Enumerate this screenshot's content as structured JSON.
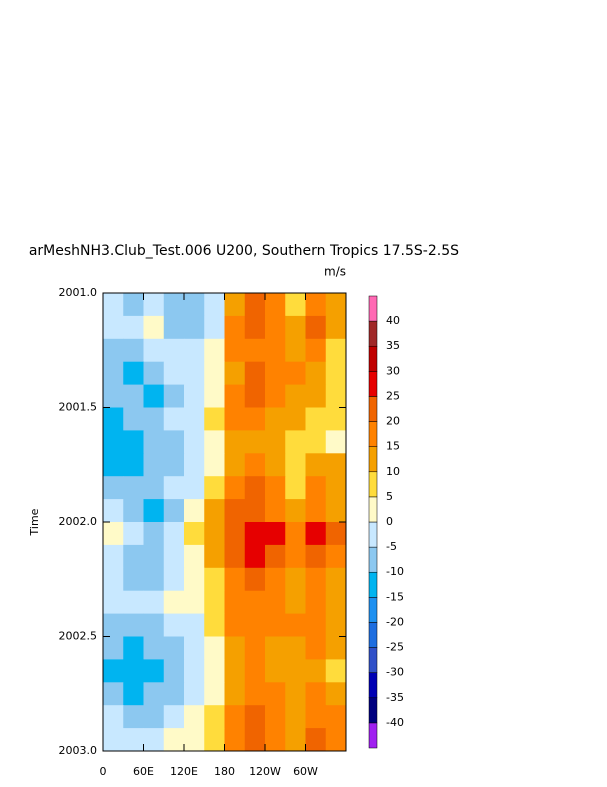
{
  "chart_data": {
    "type": "heatmap",
    "title": "arMeshNH3.Club_Test.006 U200, Southern Tropics 17.5S-2.5S",
    "units": "m/s",
    "ylabel": "Time",
    "xlim": [
      0,
      360
    ],
    "ylim": [
      2003.0,
      2001.0
    ],
    "xticks": [
      0,
      {
        "value": 60,
        "label": "60E"
      },
      {
        "value": 120,
        "label": "120E"
      },
      180,
      {
        "value": 240,
        "label": "120W"
      },
      {
        "value": 300,
        "label": "60W"
      }
    ],
    "yticks": [
      {
        "value": 2001.0,
        "label": "2001.0"
      },
      2001.5,
      {
        "value": 2002.0,
        "label": "2002.0"
      },
      2002.5,
      {
        "value": 2003.0,
        "label": "2003.0"
      }
    ],
    "x_edges": [
      0,
      30,
      60,
      90,
      120,
      150,
      180,
      210,
      240,
      270,
      300,
      330,
      360
    ],
    "y_edges": [
      2001.0,
      2001.1,
      2001.2,
      2001.3,
      2001.4,
      2001.5,
      2001.6,
      2001.7,
      2001.8,
      2001.9,
      2002.0,
      2002.1,
      2002.2,
      2002.3,
      2002.4,
      2002.5,
      2002.6,
      2002.7,
      2002.8,
      2002.9,
      2003.0
    ],
    "levels": [
      -40,
      -35,
      -30,
      -25,
      -20,
      -15,
      -10,
      -5,
      0,
      5,
      10,
      15,
      20,
      25,
      30,
      35,
      40
    ],
    "colors": [
      "#a020f0",
      "#00007f",
      "#0000b4",
      "#3050c8",
      "#1e6ee0",
      "#1e90f0",
      "#00b4f0",
      "#8cc8f0",
      "#c8e8ff",
      "#fffac8",
      "#ffdc3c",
      "#f5a000",
      "#ff8200",
      "#f06400",
      "#e60000",
      "#c00000",
      "#a02828",
      "#ff69b4"
    ],
    "z": [
      [
        -3,
        -8,
        -5,
        -8,
        -10,
        -2,
        12,
        22,
        15,
        8,
        18,
        10
      ],
      [
        -5,
        -3,
        2,
        -10,
        -8,
        -3,
        15,
        20,
        18,
        10,
        20,
        12
      ],
      [
        -8,
        -10,
        -5,
        -3,
        -5,
        0,
        15,
        18,
        15,
        12,
        15,
        8
      ],
      [
        -10,
        -12,
        -8,
        -5,
        -3,
        3,
        12,
        20,
        18,
        15,
        12,
        5
      ],
      [
        -8,
        -10,
        -12,
        -8,
        -5,
        2,
        15,
        20,
        15,
        12,
        10,
        8
      ],
      [
        -12,
        -10,
        -8,
        -5,
        -3,
        5,
        18,
        15,
        12,
        10,
        8,
        5
      ],
      [
        -15,
        -12,
        -10,
        -8,
        -5,
        0,
        10,
        12,
        10,
        5,
        8,
        3
      ],
      [
        -12,
        -15,
        -10,
        -8,
        -3,
        3,
        12,
        15,
        10,
        5,
        12,
        10
      ],
      [
        -8,
        -10,
        -8,
        -5,
        -3,
        8,
        18,
        22,
        15,
        8,
        15,
        10
      ],
      [
        -5,
        -8,
        -12,
        -8,
        0,
        10,
        20,
        22,
        18,
        12,
        18,
        12
      ],
      [
        2,
        -5,
        -8,
        -3,
        5,
        12,
        22,
        28,
        25,
        15,
        25,
        20
      ],
      [
        -3,
        -8,
        -10,
        -5,
        3,
        10,
        20,
        25,
        20,
        15,
        22,
        18
      ],
      [
        -5,
        -10,
        -8,
        -5,
        0,
        8,
        18,
        22,
        15,
        10,
        15,
        12
      ],
      [
        -3,
        -5,
        -3,
        0,
        3,
        5,
        15,
        18,
        15,
        12,
        15,
        10
      ],
      [
        -8,
        -10,
        -8,
        -5,
        -3,
        5,
        15,
        18,
        15,
        15,
        18,
        12
      ],
      [
        -10,
        -12,
        -10,
        -8,
        -5,
        3,
        12,
        15,
        12,
        12,
        15,
        10
      ],
      [
        -12,
        -15,
        -12,
        -8,
        -5,
        0,
        12,
        15,
        12,
        10,
        12,
        8
      ],
      [
        -10,
        -12,
        -10,
        -8,
        -3,
        3,
        12,
        18,
        15,
        10,
        15,
        12
      ],
      [
        -5,
        -8,
        -10,
        -5,
        0,
        5,
        18,
        20,
        15,
        12,
        15,
        15
      ],
      [
        -3,
        -5,
        -3,
        0,
        3,
        5,
        15,
        22,
        18,
        12,
        20,
        15
      ]
    ]
  }
}
